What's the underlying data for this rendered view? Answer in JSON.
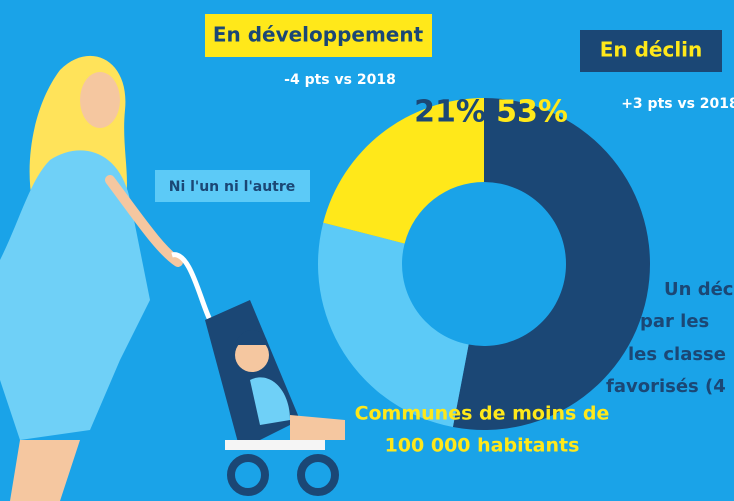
{
  "chart_data": {
    "type": "pie",
    "categories": [
      "En déclin",
      "Ni l'un ni l'autre",
      "En développement"
    ],
    "values": [
      53,
      26,
      21
    ],
    "value_labels": [
      "53%",
      null,
      "21%"
    ],
    "colors": [
      "#1b4775",
      "#5ccaf7",
      "#ffe81a"
    ],
    "changes": [
      "+3 pts vs 2018",
      null,
      "-4 pts vs 2018"
    ],
    "caption": [
      "Communes de moins de",
      "100 000 habitants"
    ],
    "side_text": [
      "Un déc",
      "par les",
      "les classe",
      "favorisés (4"
    ]
  }
}
